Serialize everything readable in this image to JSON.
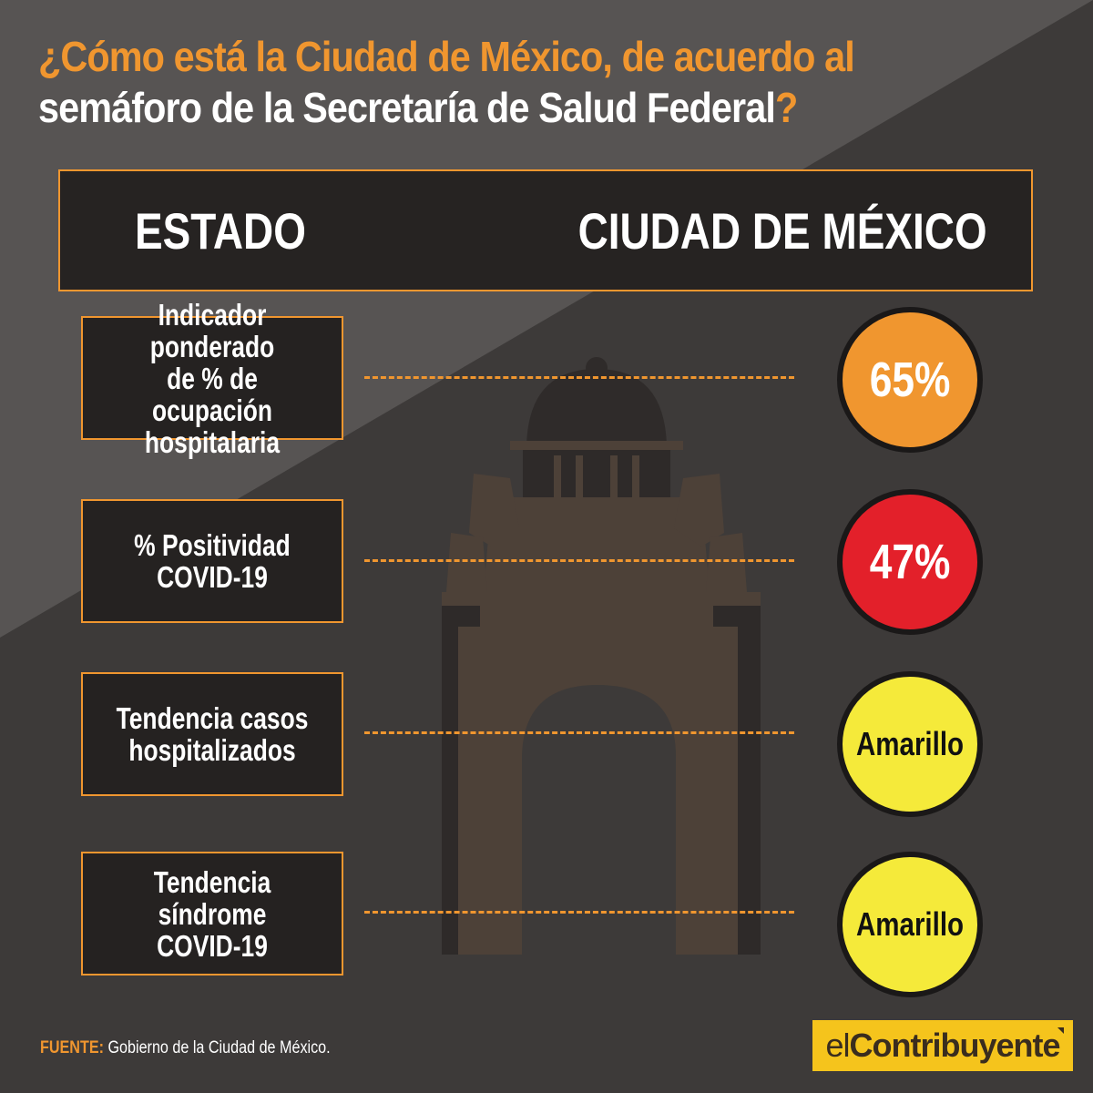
{
  "title": {
    "line1": "¿Cómo está la Ciudad de México, de acuerdo al",
    "line2_main": "semáforo de la Secretaría de Salud Federal",
    "line2_qmark": "?"
  },
  "header": {
    "left": "ESTADO",
    "right": "CIUDAD DE MÉXICO"
  },
  "indicators": [
    {
      "label": "Indicador ponderado\nde % de ocupación\nhospitalaria",
      "value": "65%",
      "status_color": "#f0962f"
    },
    {
      "label": "% Positividad\nCOVID-19",
      "value": "47%",
      "status_color": "#e3202a"
    },
    {
      "label": "Tendencia casos\nhospitalizados",
      "value": "Amarillo",
      "status_color": "#f5ea3a"
    },
    {
      "label": "Tendencia síndrome\nCOVID-19",
      "value": "Amarillo",
      "status_color": "#f5ea3a"
    }
  ],
  "source": {
    "label": "FUENTE:",
    "text": " Gobierno de la Ciudad de México."
  },
  "logo": {
    "prefix": "el",
    "main": "Contribuyente"
  },
  "colors": {
    "accent": "#f0962f",
    "background_dark": "#3d3a39",
    "background_light": "#575453"
  }
}
